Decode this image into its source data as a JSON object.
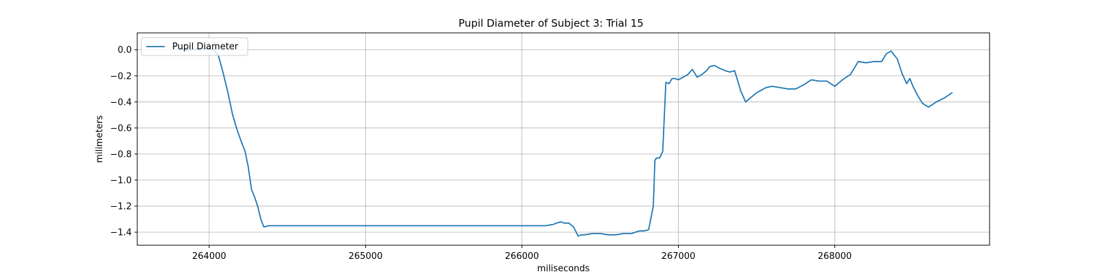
{
  "chart_data": {
    "type": "line",
    "title": "Pupil Diameter of Subject 3: Trial 15",
    "xlabel": "miliseconds",
    "ylabel": "milimeters",
    "xlim": [
      263540,
      268990
    ],
    "ylim": [
      -1.5,
      0.13
    ],
    "xticks": [
      264000,
      265000,
      266000,
      267000,
      268000
    ],
    "yticks": [
      0.0,
      -0.2,
      -0.4,
      -0.6,
      -0.8,
      -1.0,
      -1.2,
      -1.4
    ],
    "xtick_labels": [
      "264000",
      "265000",
      "266000",
      "267000",
      "268000"
    ],
    "ytick_labels": [
      "0.0",
      "−0.2",
      "−0.4",
      "−0.6",
      "−0.8",
      "−1.0",
      "−1.2",
      "−1.4"
    ],
    "grid": true,
    "legend_position": "top-left",
    "series_color": "#1f77b4",
    "series": [
      {
        "name": "Pupil Diameter",
        "x": [
          263800,
          263850,
          263900,
          263950,
          264000,
          264030,
          264060,
          264090,
          264120,
          264150,
          264180,
          264210,
          264230,
          264250,
          264270,
          264290,
          264310,
          264330,
          264350,
          264380,
          264400,
          264500,
          265000,
          265500,
          266000,
          266150,
          266200,
          266220,
          266250,
          266270,
          266300,
          266330,
          266360,
          266380,
          266400,
          266450,
          266500,
          266550,
          266600,
          266650,
          266700,
          266750,
          266780,
          266810,
          266840,
          266850,
          266860,
          266880,
          266900,
          266920,
          266940,
          266960,
          266980,
          267000,
          267030,
          267060,
          267090,
          267120,
          267150,
          267180,
          267200,
          267230,
          267260,
          267300,
          267330,
          267360,
          267400,
          267430,
          267460,
          267500,
          267530,
          267560,
          267600,
          267650,
          267700,
          267750,
          267800,
          267850,
          267900,
          267950,
          268000,
          268030,
          268060,
          268100,
          268150,
          268200,
          268250,
          268300,
          268330,
          268360,
          268380,
          268400,
          268430,
          268460,
          268480,
          268500,
          268530,
          268560,
          268600,
          268650,
          268700,
          268750
        ],
        "values": [
          0.01,
          0.0,
          0.0,
          0.01,
          0.01,
          0.0,
          -0.05,
          -0.18,
          -0.33,
          -0.5,
          -0.62,
          -0.72,
          -0.78,
          -0.9,
          -1.07,
          -1.13,
          -1.2,
          -1.3,
          -1.36,
          -1.35,
          -1.35,
          -1.35,
          -1.35,
          -1.35,
          -1.35,
          -1.35,
          -1.34,
          -1.33,
          -1.32,
          -1.33,
          -1.33,
          -1.36,
          -1.43,
          -1.42,
          -1.42,
          -1.41,
          -1.41,
          -1.42,
          -1.42,
          -1.41,
          -1.41,
          -1.39,
          -1.39,
          -1.38,
          -1.2,
          -0.85,
          -0.83,
          -0.83,
          -0.78,
          -0.25,
          -0.26,
          -0.22,
          -0.22,
          -0.23,
          -0.21,
          -0.19,
          -0.15,
          -0.21,
          -0.19,
          -0.16,
          -0.13,
          -0.12,
          -0.14,
          -0.16,
          -0.17,
          -0.16,
          -0.32,
          -0.4,
          -0.37,
          -0.33,
          -0.31,
          -0.29,
          -0.28,
          -0.29,
          -0.3,
          -0.3,
          -0.27,
          -0.23,
          -0.24,
          -0.24,
          -0.28,
          -0.25,
          -0.22,
          -0.19,
          -0.09,
          -0.1,
          -0.09,
          -0.09,
          -0.03,
          -0.01,
          -0.04,
          -0.07,
          -0.18,
          -0.26,
          -0.22,
          -0.28,
          -0.35,
          -0.41,
          -0.44,
          -0.4,
          -0.37,
          -0.33
        ]
      }
    ]
  }
}
